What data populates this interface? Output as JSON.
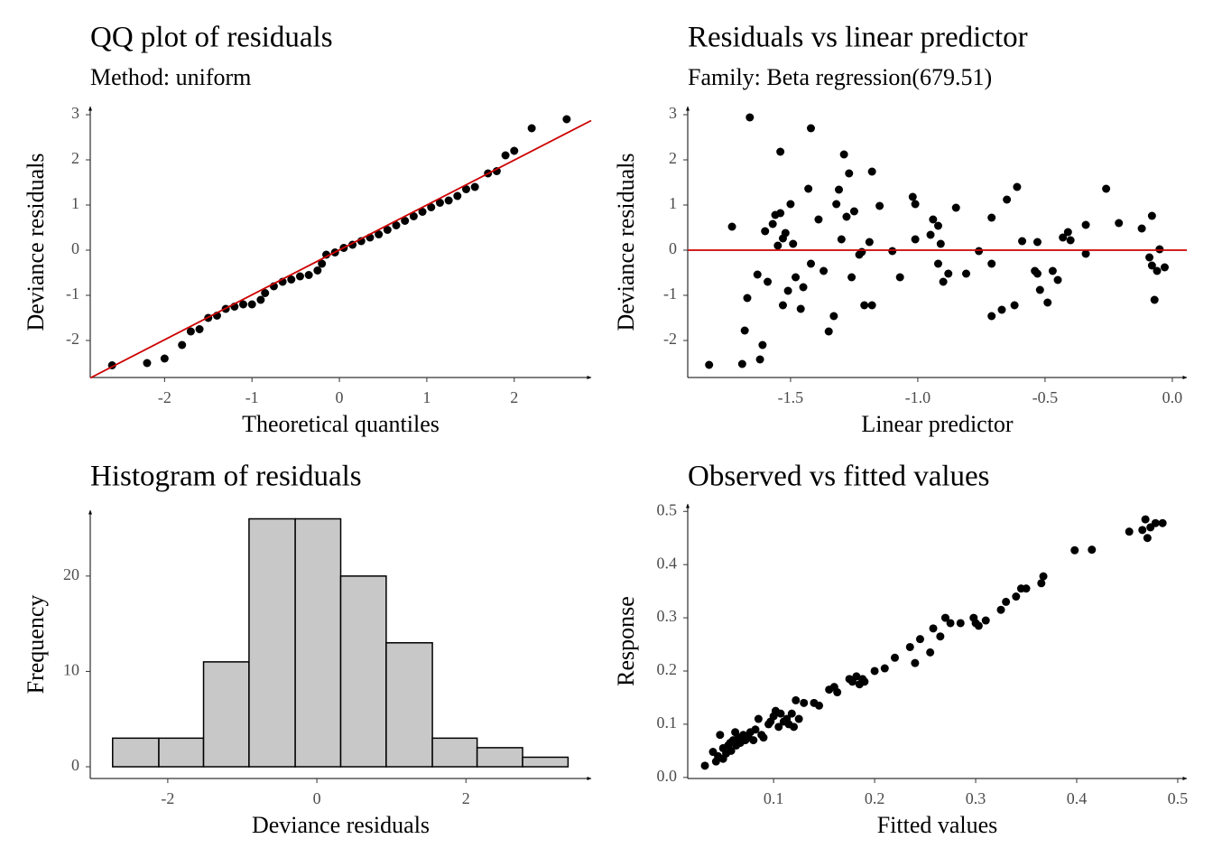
{
  "chart_data": [
    {
      "type": "scatter",
      "title": "QQ plot of residuals",
      "subtitle": "Method: uniform",
      "xlabel": "Theoretical quantiles",
      "ylabel": "Deviance residuals",
      "color": "#000000",
      "xlim": [
        -2.85,
        2.88
      ],
      "ylim": [
        -2.82,
        3.18
      ],
      "xticks": [
        -2,
        -1,
        0,
        1,
        2
      ],
      "yticks": [
        -2,
        -1,
        0,
        1,
        2,
        3
      ],
      "x": [
        -2.6,
        -2.2,
        -2.0,
        -1.8,
        -1.7,
        -1.6,
        -1.5,
        -1.4,
        -1.3,
        -1.2,
        -1.1,
        -1.0,
        -0.9,
        -0.85,
        -0.75,
        -0.65,
        -0.55,
        -0.45,
        -0.35,
        -0.25,
        -0.2,
        -0.15,
        -0.05,
        0.05,
        0.15,
        0.25,
        0.35,
        0.45,
        0.55,
        0.65,
        0.75,
        0.85,
        0.95,
        1.05,
        1.15,
        1.25,
        1.35,
        1.45,
        1.55,
        1.7,
        1.8,
        1.9,
        2.0,
        2.2,
        2.6
      ],
      "y": [
        -2.55,
        -2.5,
        -2.4,
        -2.1,
        -1.8,
        -1.75,
        -1.5,
        -1.45,
        -1.3,
        -1.25,
        -1.2,
        -1.2,
        -1.1,
        -0.95,
        -0.8,
        -0.7,
        -0.65,
        -0.58,
        -0.55,
        -0.45,
        -0.3,
        -0.1,
        -0.05,
        0.05,
        0.12,
        0.2,
        0.28,
        0.35,
        0.45,
        0.55,
        0.65,
        0.75,
        0.85,
        0.95,
        1.05,
        1.1,
        1.2,
        1.35,
        1.4,
        1.7,
        1.75,
        2.1,
        2.2,
        2.7,
        2.9
      ],
      "reference_line": {
        "x": [
          -2.85,
          2.88
        ],
        "y": [
          -2.83,
          2.87
        ],
        "color": "#cc0000"
      }
    },
    {
      "type": "scatter",
      "title": "Residuals vs linear predictor",
      "subtitle": "Family: Beta regression(679.51)",
      "xlabel": "Linear predictor",
      "ylabel": "Deviance residuals",
      "color": "#000000",
      "xlim": [
        -1.904,
        0.057
      ],
      "ylim": [
        -2.82,
        3.18
      ],
      "xticks": [
        -1.5,
        {
          "value": -1,
          "label": "-1.0"
        },
        -0.5,
        {
          "value": 0,
          "label": "0.0"
        }
      ],
      "yticks": [
        -2,
        -1,
        0,
        1,
        2,
        3
      ],
      "x": [
        -1.82,
        -1.73,
        -1.69,
        -1.68,
        -1.67,
        -1.66,
        -1.63,
        -1.62,
        -1.61,
        -1.6,
        -1.59,
        -1.57,
        -1.56,
        -1.55,
        -1.54,
        -1.54,
        -1.53,
        -1.53,
        -1.52,
        -1.51,
        -1.5,
        -1.49,
        -1.48,
        -1.46,
        -1.45,
        -1.43,
        -1.42,
        -1.42,
        -1.39,
        -1.37,
        -1.35,
        -1.33,
        -1.32,
        -1.31,
        -1.3,
        -1.29,
        -1.28,
        -1.27,
        -1.26,
        -1.25,
        -1.23,
        -1.22,
        -1.21,
        -1.19,
        -1.18,
        -1.18,
        -1.15,
        -1.1,
        -1.07,
        -1.02,
        -1.01,
        -1.01,
        -0.95,
        -0.94,
        -0.92,
        -0.92,
        -0.91,
        -0.9,
        -0.88,
        -0.85,
        -0.81,
        -0.76,
        -0.71,
        -0.71,
        -0.71,
        -0.67,
        -0.65,
        -0.62,
        -0.61,
        -0.59,
        -0.54,
        -0.53,
        -0.53,
        -0.52,
        -0.49,
        -0.47,
        -0.45,
        -0.43,
        -0.41,
        -0.4,
        -0.34,
        -0.34,
        -0.26,
        -0.21,
        -0.12,
        -0.09,
        -0.08,
        -0.07,
        -0.08,
        -0.06,
        -0.05,
        -0.03
      ],
      "y": [
        -2.54,
        0.52,
        -2.52,
        -1.78,
        -1.06,
        2.94,
        -0.54,
        -2.42,
        -2.1,
        0.42,
        -0.7,
        0.58,
        0.78,
        0.1,
        2.18,
        0.82,
        0.26,
        -1.22,
        0.38,
        -0.9,
        1.02,
        0.14,
        -0.6,
        -1.3,
        -0.82,
        1.36,
        2.7,
        -0.3,
        0.68,
        -0.46,
        -1.8,
        -1.46,
        1.02,
        1.34,
        0.24,
        2.12,
        0.74,
        1.7,
        -0.6,
        0.86,
        -0.1,
        -0.04,
        -1.22,
        0.18,
        -1.22,
        1.74,
        0.98,
        -0.02,
        -0.6,
        1.18,
        1.02,
        0.24,
        0.34,
        0.68,
        0.54,
        -0.3,
        0.14,
        -0.7,
        -0.52,
        0.94,
        -0.52,
        -0.02,
        -0.3,
        -1.46,
        0.72,
        -1.32,
        1.12,
        -1.22,
        1.4,
        0.2,
        -0.46,
        0.18,
        -0.52,
        -0.88,
        -1.16,
        -0.46,
        -0.66,
        0.28,
        0.4,
        0.22,
        0.56,
        -0.08,
        1.36,
        0.6,
        0.48,
        -0.16,
        0.76,
        -1.1,
        -0.34,
        -0.46,
        0.02,
        -0.38
      ],
      "reference_line": {
        "x": [
          -1.904,
          0.057
        ],
        "y": [
          0,
          0
        ],
        "color": "#cc0000"
      }
    },
    {
      "type": "histogram",
      "title": "Histogram of residuals",
      "xlabel": "Deviance residuals",
      "ylabel": "Frequency",
      "color": "#c8c8c8",
      "edgecolor": "#000000",
      "xlim": [
        -3.04,
        3.68
      ],
      "ylim": [
        -1.23,
        26.9
      ],
      "xticks": [
        -2,
        0,
        2
      ],
      "yticks": [
        0,
        10,
        20
      ],
      "bins": [
        -2.74,
        -2.12,
        -1.52,
        -0.91,
        -0.29,
        0.32,
        0.93,
        1.55,
        2.15,
        2.76,
        3.37
      ],
      "values": [
        3,
        3,
        11,
        26,
        26,
        20,
        13,
        3,
        2,
        1
      ]
    },
    {
      "type": "scatter",
      "title": "Observed vs fitted values",
      "xlabel": "Fitted values",
      "ylabel": "Response",
      "color": "#000000",
      "xlim": [
        0.015,
        0.509
      ],
      "ylim": [
        -0.002,
        0.514
      ],
      "xticks": [
        0.1,
        0.2,
        0.3,
        0.4,
        0.5
      ],
      "yticks": [
        {
          "value": 0,
          "label": "0.0"
        },
        0.1,
        0.2,
        0.3,
        0.4,
        0.5
      ],
      "x": [
        0.032,
        0.04,
        0.043,
        0.045,
        0.047,
        0.05,
        0.05,
        0.053,
        0.055,
        0.057,
        0.058,
        0.06,
        0.062,
        0.063,
        0.065,
        0.067,
        0.07,
        0.072,
        0.075,
        0.077,
        0.08,
        0.082,
        0.085,
        0.088,
        0.09,
        0.095,
        0.097,
        0.1,
        0.102,
        0.105,
        0.107,
        0.11,
        0.113,
        0.115,
        0.118,
        0.12,
        0.122,
        0.125,
        0.13,
        0.14,
        0.145,
        0.155,
        0.16,
        0.163,
        0.175,
        0.178,
        0.182,
        0.185,
        0.188,
        0.19,
        0.2,
        0.21,
        0.22,
        0.235,
        0.24,
        0.245,
        0.255,
        0.258,
        0.265,
        0.27,
        0.275,
        0.285,
        0.298,
        0.3,
        0.303,
        0.31,
        0.325,
        0.33,
        0.34,
        0.345,
        0.35,
        0.365,
        0.367,
        0.398,
        0.415,
        0.452,
        0.465,
        0.468,
        0.47,
        0.473,
        0.478,
        0.485
      ],
      "y": [
        0.022,
        0.048,
        0.03,
        0.04,
        0.08,
        0.035,
        0.055,
        0.045,
        0.06,
        0.065,
        0.05,
        0.07,
        0.085,
        0.06,
        0.075,
        0.065,
        0.08,
        0.07,
        0.075,
        0.085,
        0.07,
        0.09,
        0.11,
        0.08,
        0.075,
        0.1,
        0.105,
        0.115,
        0.125,
        0.095,
        0.12,
        0.105,
        0.11,
        0.1,
        0.12,
        0.095,
        0.145,
        0.11,
        0.14,
        0.14,
        0.135,
        0.165,
        0.17,
        0.16,
        0.185,
        0.18,
        0.19,
        0.175,
        0.185,
        0.18,
        0.2,
        0.205,
        0.225,
        0.245,
        0.215,
        0.26,
        0.235,
        0.28,
        0.265,
        0.3,
        0.29,
        0.29,
        0.3,
        0.29,
        0.285,
        0.295,
        0.315,
        0.33,
        0.34,
        0.355,
        0.355,
        0.365,
        0.378,
        0.427,
        0.428,
        0.462,
        0.465,
        0.485,
        0.45,
        0.47,
        0.478,
        0.478
      ]
    }
  ]
}
